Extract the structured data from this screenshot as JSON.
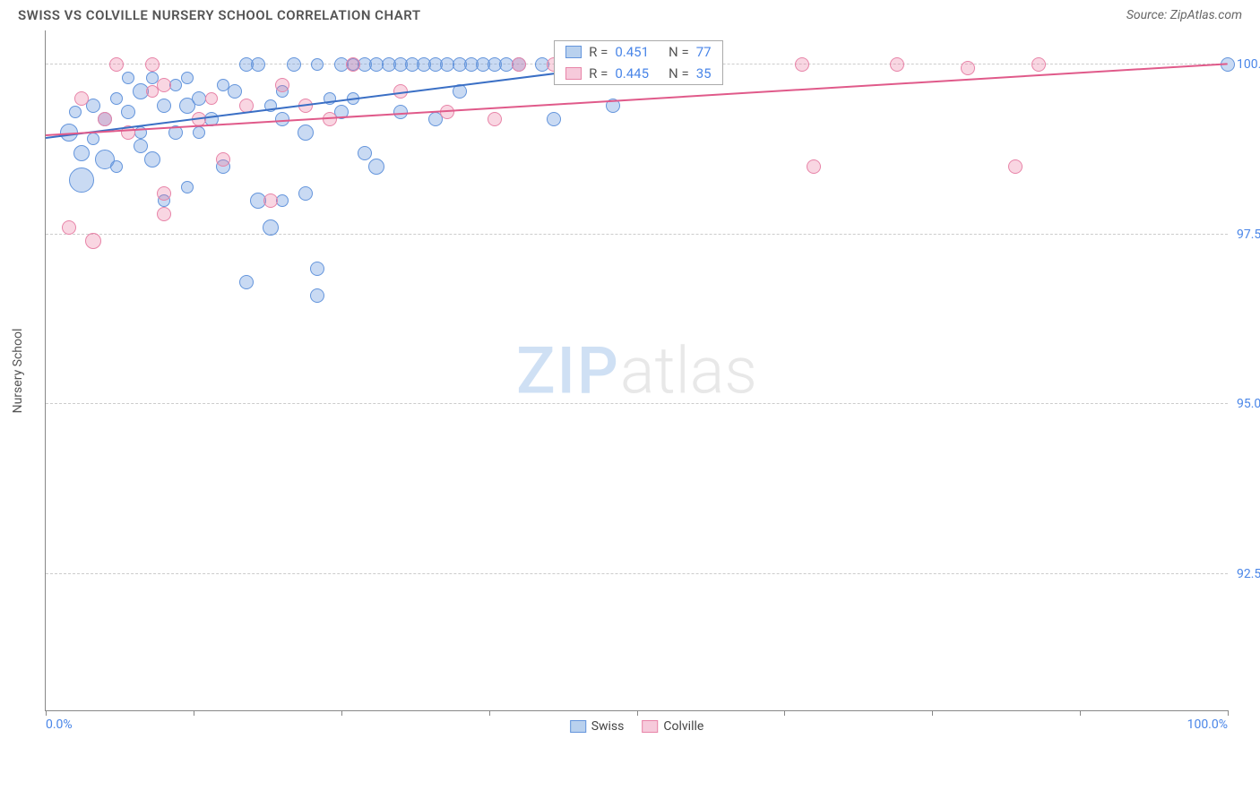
{
  "title": "SWISS VS COLVILLE NURSERY SCHOOL CORRELATION CHART",
  "source": "Source: ZipAtlas.com",
  "ylabel": "Nursery School",
  "xlim": [
    0,
    100
  ],
  "ylim": [
    90.5,
    100.5
  ],
  "xtick_positions": [
    0,
    12.5,
    25,
    37.5,
    50,
    62.5,
    75,
    87.5,
    100
  ],
  "xtick_labeled": {
    "0": "0.0%",
    "100": "100.0%"
  },
  "ytick_positions": [
    92.5,
    95.0,
    97.5,
    100.0
  ],
  "ytick_labels": [
    "92.5%",
    "95.0%",
    "97.5%",
    "100.0%"
  ],
  "series": [
    {
      "name": "Swiss",
      "color_fill": "rgba(100,150,220,0.35)",
      "color_stroke": "#6495dc",
      "legend_swatch_fill": "#b9d1ee",
      "legend_swatch_border": "#6495dc",
      "regression_color": "#3a6fc5",
      "R": "0.451",
      "N": "77",
      "regression": {
        "x1": 0,
        "y1": 98.9,
        "x2": 50,
        "y2": 100.0
      },
      "points": [
        {
          "x": 2,
          "y": 99.0,
          "r": 10
        },
        {
          "x": 3,
          "y": 98.7,
          "r": 9
        },
        {
          "x": 2.5,
          "y": 99.3,
          "r": 7
        },
        {
          "x": 4,
          "y": 99.4,
          "r": 8
        },
        {
          "x": 5,
          "y": 99.2,
          "r": 8
        },
        {
          "x": 5,
          "y": 98.6,
          "r": 11
        },
        {
          "x": 3,
          "y": 98.3,
          "r": 14
        },
        {
          "x": 6,
          "y": 99.5,
          "r": 7
        },
        {
          "x": 7,
          "y": 99.3,
          "r": 8
        },
        {
          "x": 8,
          "y": 99.6,
          "r": 9
        },
        {
          "x": 8,
          "y": 98.8,
          "r": 8
        },
        {
          "x": 9,
          "y": 98.6,
          "r": 9
        },
        {
          "x": 10,
          "y": 99.4,
          "r": 8
        },
        {
          "x": 11,
          "y": 99.7,
          "r": 7
        },
        {
          "x": 11,
          "y": 99.0,
          "r": 8
        },
        {
          "x": 12,
          "y": 99.4,
          "r": 9
        },
        {
          "x": 13,
          "y": 99.5,
          "r": 8
        },
        {
          "x": 13,
          "y": 99.0,
          "r": 7
        },
        {
          "x": 14,
          "y": 99.2,
          "r": 8
        },
        {
          "x": 15,
          "y": 98.5,
          "r": 8
        },
        {
          "x": 12,
          "y": 98.2,
          "r": 7
        },
        {
          "x": 16,
          "y": 99.6,
          "r": 8
        },
        {
          "x": 17,
          "y": 100.0,
          "r": 8
        },
        {
          "x": 18,
          "y": 100.0,
          "r": 8
        },
        {
          "x": 18,
          "y": 98.0,
          "r": 9
        },
        {
          "x": 19,
          "y": 97.6,
          "r": 9
        },
        {
          "x": 20,
          "y": 99.2,
          "r": 8
        },
        {
          "x": 20,
          "y": 99.6,
          "r": 7
        },
        {
          "x": 21,
          "y": 100.0,
          "r": 8
        },
        {
          "x": 22,
          "y": 99.0,
          "r": 9
        },
        {
          "x": 22,
          "y": 98.1,
          "r": 8
        },
        {
          "x": 23,
          "y": 100.0,
          "r": 7
        },
        {
          "x": 23,
          "y": 97.0,
          "r": 8
        },
        {
          "x": 17,
          "y": 96.8,
          "r": 8
        },
        {
          "x": 25,
          "y": 100.0,
          "r": 8
        },
        {
          "x": 25,
          "y": 99.3,
          "r": 8
        },
        {
          "x": 26,
          "y": 100.0,
          "r": 7
        },
        {
          "x": 27,
          "y": 100.0,
          "r": 8
        },
        {
          "x": 27,
          "y": 98.7,
          "r": 8
        },
        {
          "x": 28,
          "y": 100.0,
          "r": 8
        },
        {
          "x": 28,
          "y": 98.5,
          "r": 9
        },
        {
          "x": 29,
          "y": 100.0,
          "r": 8
        },
        {
          "x": 23,
          "y": 96.6,
          "r": 8
        },
        {
          "x": 30,
          "y": 100.0,
          "r": 8
        },
        {
          "x": 31,
          "y": 100.0,
          "r": 8
        },
        {
          "x": 32,
          "y": 100.0,
          "r": 8
        },
        {
          "x": 33,
          "y": 100.0,
          "r": 8
        },
        {
          "x": 33,
          "y": 99.2,
          "r": 8
        },
        {
          "x": 34,
          "y": 100.0,
          "r": 8
        },
        {
          "x": 35,
          "y": 100.0,
          "r": 8
        },
        {
          "x": 36,
          "y": 100.0,
          "r": 8
        },
        {
          "x": 37,
          "y": 100.0,
          "r": 8
        },
        {
          "x": 38,
          "y": 100.0,
          "r": 8
        },
        {
          "x": 39,
          "y": 100.0,
          "r": 8
        },
        {
          "x": 40,
          "y": 100.0,
          "r": 8
        },
        {
          "x": 42,
          "y": 100.0,
          "r": 8
        },
        {
          "x": 43,
          "y": 99.2,
          "r": 8
        },
        {
          "x": 44,
          "y": 100.0,
          "r": 8
        },
        {
          "x": 45,
          "y": 100.0,
          "r": 8
        },
        {
          "x": 46,
          "y": 100.0,
          "r": 8
        },
        {
          "x": 48,
          "y": 99.4,
          "r": 8
        },
        {
          "x": 50,
          "y": 100.0,
          "r": 8
        },
        {
          "x": 100,
          "y": 100.0,
          "r": 8
        },
        {
          "x": 20,
          "y": 98.0,
          "r": 7
        },
        {
          "x": 15,
          "y": 99.7,
          "r": 7
        },
        {
          "x": 10,
          "y": 98.0,
          "r": 7
        },
        {
          "x": 6,
          "y": 98.5,
          "r": 7
        },
        {
          "x": 4,
          "y": 98.9,
          "r": 7
        },
        {
          "x": 7,
          "y": 99.8,
          "r": 7
        },
        {
          "x": 24,
          "y": 99.5,
          "r": 7
        },
        {
          "x": 19,
          "y": 99.4,
          "r": 7
        },
        {
          "x": 9,
          "y": 99.8,
          "r": 7
        },
        {
          "x": 12,
          "y": 99.8,
          "r": 7
        },
        {
          "x": 30,
          "y": 99.3,
          "r": 8
        },
        {
          "x": 35,
          "y": 99.6,
          "r": 8
        },
        {
          "x": 8,
          "y": 99.0,
          "r": 7
        },
        {
          "x": 26,
          "y": 99.5,
          "r": 7
        }
      ]
    },
    {
      "name": "Colville",
      "color_fill": "rgba(235,120,160,0.30)",
      "color_stroke": "#e884a8",
      "legend_swatch_fill": "#f6cadb",
      "legend_swatch_border": "#e884a8",
      "regression_color": "#e05a8a",
      "R": "0.445",
      "N": "35",
      "regression": {
        "x1": 0,
        "y1": 98.95,
        "x2": 100,
        "y2": 100.0
      },
      "points": [
        {
          "x": 2,
          "y": 97.6,
          "r": 8
        },
        {
          "x": 3,
          "y": 99.5,
          "r": 8
        },
        {
          "x": 4,
          "y": 97.4,
          "r": 9
        },
        {
          "x": 5,
          "y": 99.2,
          "r": 8
        },
        {
          "x": 6,
          "y": 100.0,
          "r": 8
        },
        {
          "x": 7,
          "y": 99.0,
          "r": 8
        },
        {
          "x": 9,
          "y": 99.6,
          "r": 7
        },
        {
          "x": 9,
          "y": 100.0,
          "r": 8
        },
        {
          "x": 10,
          "y": 99.7,
          "r": 8
        },
        {
          "x": 10,
          "y": 98.1,
          "r": 8
        },
        {
          "x": 10,
          "y": 97.8,
          "r": 8
        },
        {
          "x": 13,
          "y": 99.2,
          "r": 8
        },
        {
          "x": 14,
          "y": 99.5,
          "r": 7
        },
        {
          "x": 15,
          "y": 98.6,
          "r": 8
        },
        {
          "x": 17,
          "y": 99.4,
          "r": 8
        },
        {
          "x": 19,
          "y": 98.0,
          "r": 8
        },
        {
          "x": 20,
          "y": 99.7,
          "r": 8
        },
        {
          "x": 22,
          "y": 99.4,
          "r": 8
        },
        {
          "x": 24,
          "y": 99.2,
          "r": 8
        },
        {
          "x": 26,
          "y": 100.0,
          "r": 8
        },
        {
          "x": 30,
          "y": 99.6,
          "r": 8
        },
        {
          "x": 34,
          "y": 99.3,
          "r": 8
        },
        {
          "x": 38,
          "y": 99.2,
          "r": 8
        },
        {
          "x": 40,
          "y": 100.0,
          "r": 8
        },
        {
          "x": 43,
          "y": 100.0,
          "r": 8
        },
        {
          "x": 47,
          "y": 100.0,
          "r": 8
        },
        {
          "x": 50,
          "y": 100.0,
          "r": 8
        },
        {
          "x": 53,
          "y": 100.0,
          "r": 8
        },
        {
          "x": 55,
          "y": 100.0,
          "r": 8
        },
        {
          "x": 64,
          "y": 100.0,
          "r": 8
        },
        {
          "x": 65,
          "y": 98.5,
          "r": 8
        },
        {
          "x": 72,
          "y": 100.0,
          "r": 8
        },
        {
          "x": 82,
          "y": 98.5,
          "r": 8
        },
        {
          "x": 84,
          "y": 100.0,
          "r": 8
        },
        {
          "x": 78,
          "y": 99.95,
          "r": 8
        }
      ]
    }
  ],
  "stat_value_color": "#4a86e8",
  "ytick_label_color": "#4a86e8",
  "xlabel_color": "#4a86e8",
  "watermark": {
    "zip": "ZIP",
    "atlas": "atlas"
  },
  "legend_stats_pos": {
    "left_pct": 43,
    "top_pct": 1.5
  }
}
